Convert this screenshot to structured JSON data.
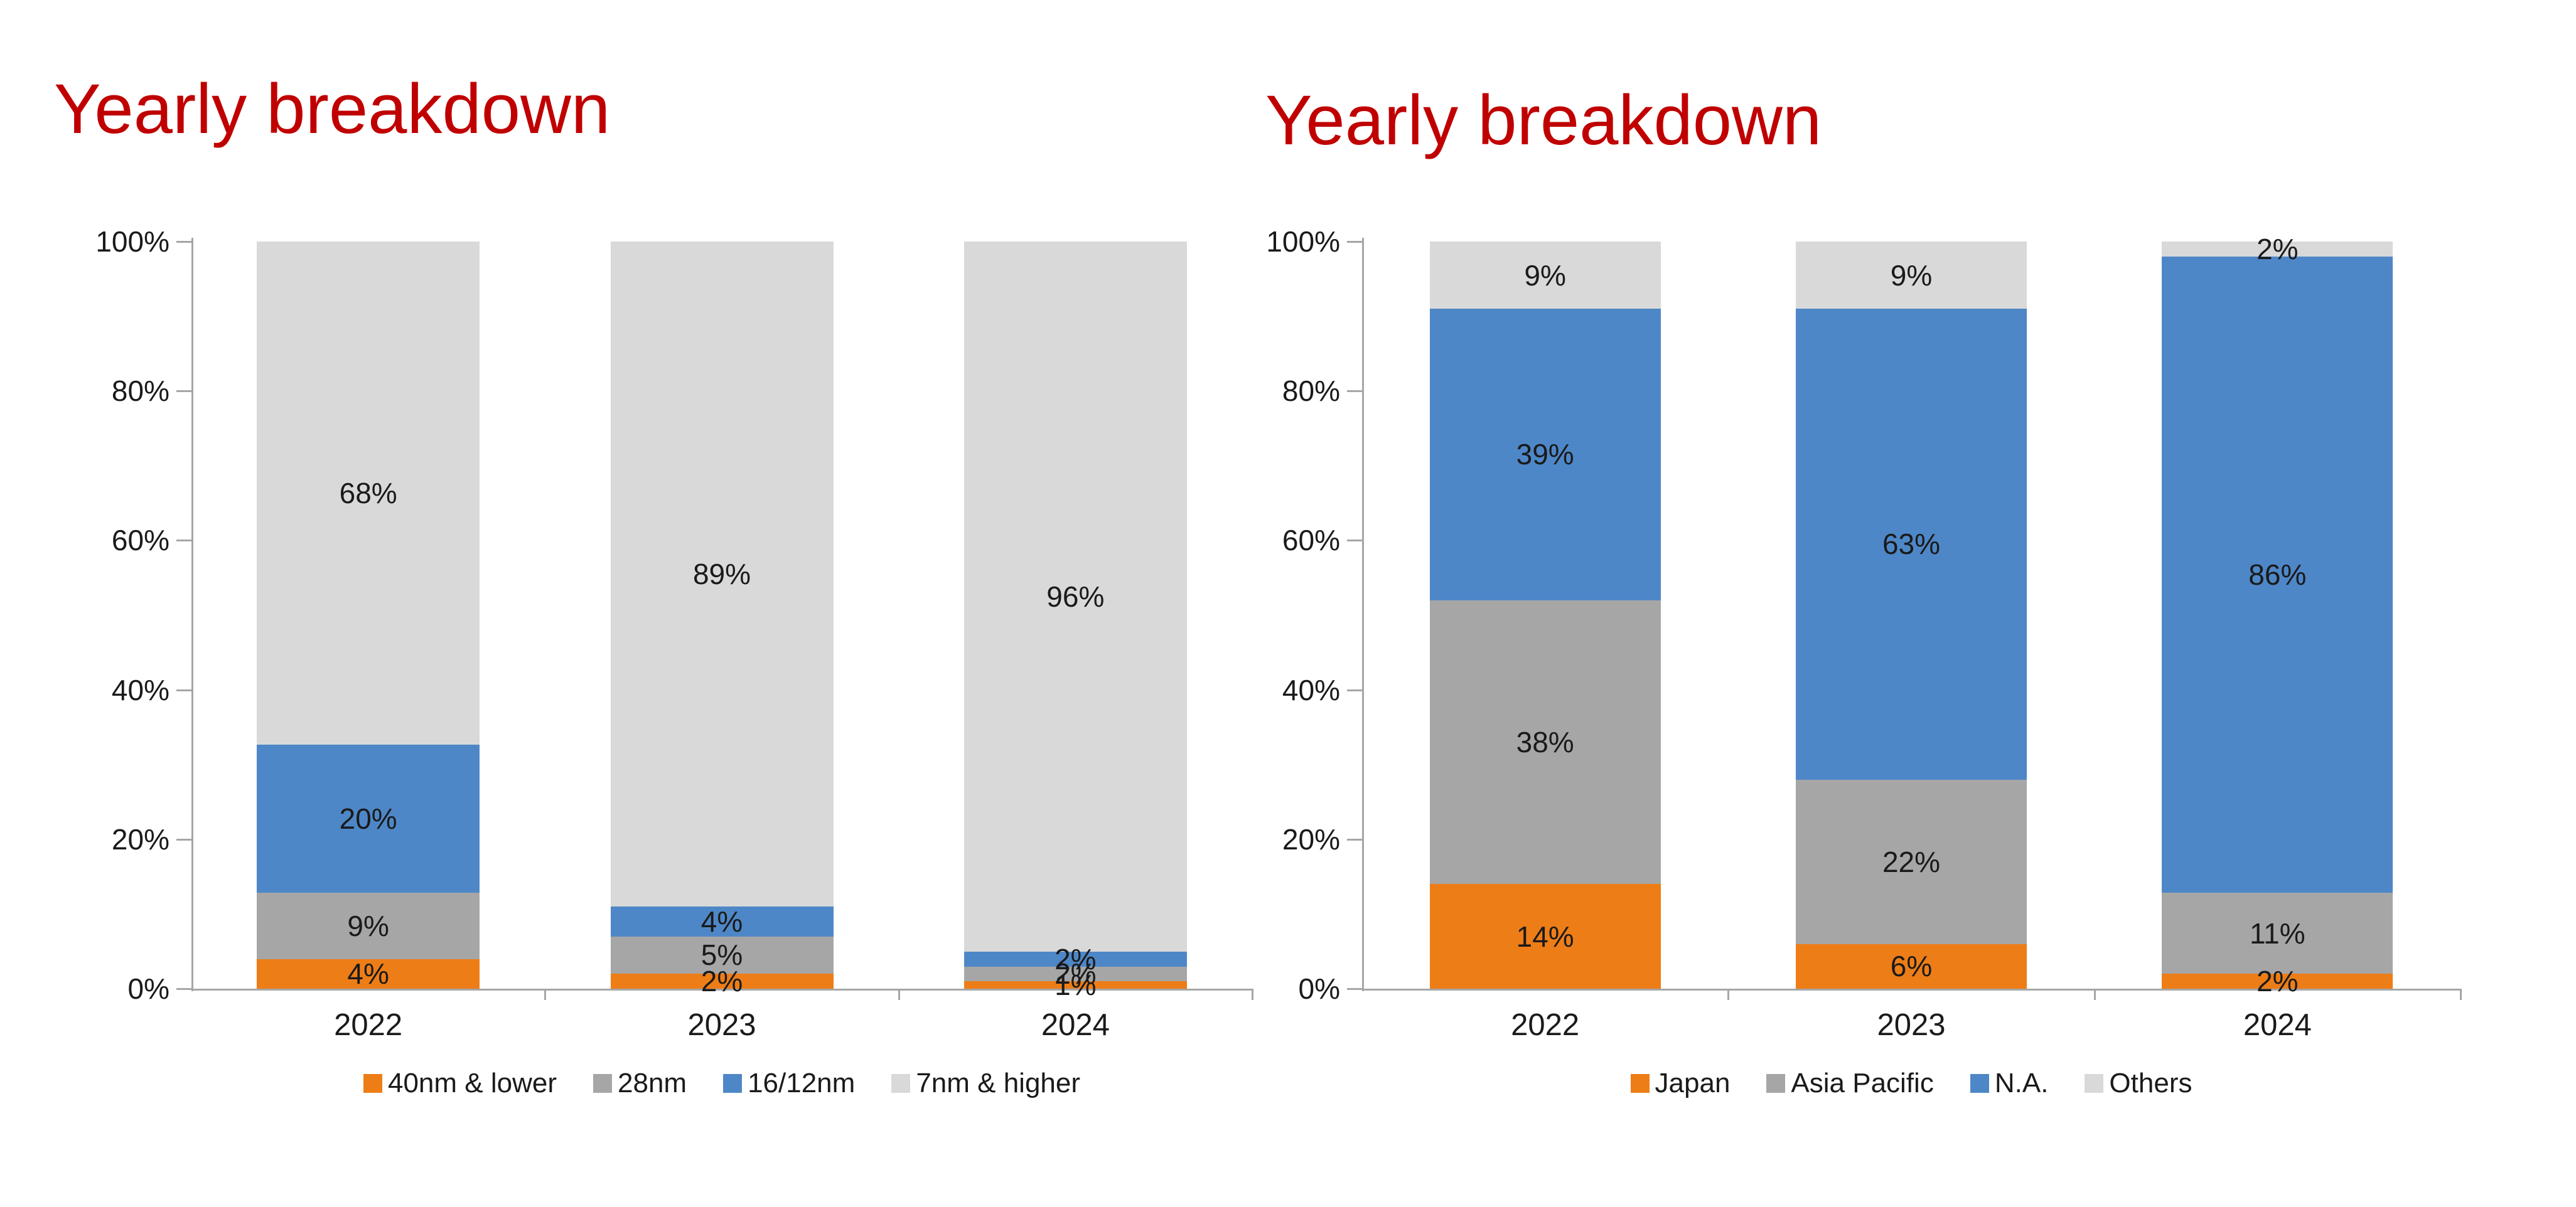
{
  "page": {
    "background": "#FFFFFF"
  },
  "styles": {
    "title_color": "#C00000",
    "axis_color": "#A6A6A6",
    "text_color": "#1A1A1A"
  },
  "chart_data": [
    {
      "type": "bar",
      "subtype": "stacked-100",
      "title": "Yearly breakdown",
      "categories": [
        "2022",
        "2023",
        "2024"
      ],
      "series": [
        {
          "name": "40nm & lower",
          "color": "#ED7D17",
          "values": [
            4,
            2,
            1
          ]
        },
        {
          "name": "28nm",
          "color": "#A6A6A6",
          "values": [
            9,
            5,
            2
          ]
        },
        {
          "name": "16/12nm",
          "color": "#4E87C7",
          "values": [
            20,
            4,
            2
          ]
        },
        {
          "name": "7nm & higher",
          "color": "#D9D9D9",
          "values": [
            68,
            89,
            96
          ]
        }
      ],
      "value_suffix": "%",
      "y_ticks": [
        "0%",
        "20%",
        "40%",
        "60%",
        "80%",
        "100%"
      ],
      "ylim": [
        0,
        100
      ],
      "grid": false,
      "legend_position": "bottom"
    },
    {
      "type": "bar",
      "subtype": "stacked-100",
      "title": "Yearly breakdown",
      "categories": [
        "2022",
        "2023",
        "2024"
      ],
      "series": [
        {
          "name": "Japan",
          "color": "#ED7D17",
          "values": [
            14,
            6,
            2
          ]
        },
        {
          "name": "Asia Pacific",
          "color": "#A6A6A6",
          "values": [
            38,
            22,
            11
          ]
        },
        {
          "name": "N.A.",
          "color": "#4E87C7",
          "values": [
            39,
            63,
            86
          ]
        },
        {
          "name": "Others",
          "color": "#D9D9D9",
          "values": [
            9,
            9,
            2
          ]
        }
      ],
      "value_suffix": "%",
      "y_ticks": [
        "0%",
        "20%",
        "40%",
        "60%",
        "80%",
        "100%"
      ],
      "ylim": [
        0,
        100
      ],
      "grid": false,
      "legend_position": "bottom"
    }
  ]
}
